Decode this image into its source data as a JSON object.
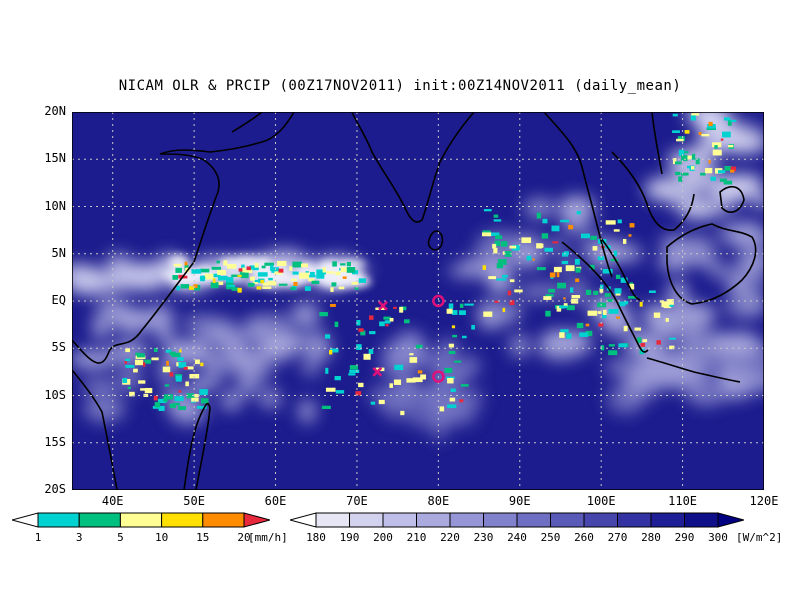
{
  "title": "NICAM OLR & PRCIP (00Z17NOV2011) init:00Z14NOV2011 (daily_mean)",
  "map": {
    "lon_range": [
      35,
      120
    ],
    "lat_range": [
      -20,
      20
    ],
    "lat_ticks": [
      {
        "value": 20,
        "label": "20N"
      },
      {
        "value": 15,
        "label": "15N"
      },
      {
        "value": 10,
        "label": "10N"
      },
      {
        "value": 5,
        "label": "5N"
      },
      {
        "value": 0,
        "label": "EQ"
      },
      {
        "value": -5,
        "label": "5S"
      },
      {
        "value": -10,
        "label": "10S"
      },
      {
        "value": -15,
        "label": "15S"
      },
      {
        "value": -20,
        "label": "20S"
      }
    ],
    "lon_ticks": [
      {
        "value": 40,
        "label": "40E"
      },
      {
        "value": 50,
        "label": "50E"
      },
      {
        "value": 60,
        "label": "60E"
      },
      {
        "value": 70,
        "label": "70E"
      },
      {
        "value": 80,
        "label": "80E"
      },
      {
        "value": 90,
        "label": "90E"
      },
      {
        "value": 100,
        "label": "100E"
      },
      {
        "value": 110,
        "label": "110E"
      },
      {
        "value": 120,
        "label": "120E"
      }
    ],
    "markers": [
      {
        "type": "circle",
        "lon": 80,
        "lat": 0
      },
      {
        "type": "circle",
        "lon": 80,
        "lat": -8
      },
      {
        "type": "cross",
        "lon": 73.2,
        "lat": -0.5
      },
      {
        "type": "cross",
        "lon": 72.5,
        "lat": -7.5
      }
    ],
    "marker_color": "#e0107a",
    "grid": true
  },
  "precip_bar": {
    "labels": [
      "1",
      "3",
      "5",
      "10",
      "15",
      "20"
    ],
    "unit": "[mm/h]",
    "colors": [
      "#ffffff",
      "#00d2d2",
      "#00c080",
      "#ffff96",
      "#ffe000",
      "#ff8c00",
      "#e8283c"
    ]
  },
  "olr_bar": {
    "labels": [
      "180",
      "190",
      "200",
      "210",
      "220",
      "230",
      "240",
      "250",
      "260",
      "270",
      "280",
      "290",
      "300"
    ],
    "unit": "[W/m^2]",
    "colors": [
      "#ffffff",
      "#e6e6f5",
      "#d2d2ef",
      "#bebee8",
      "#aaaadf",
      "#9696d6",
      "#8282cc",
      "#6e6ec2",
      "#5a5ab8",
      "#4646ad",
      "#3232a3",
      "#1e1e96",
      "#0f0f8a",
      "#000080"
    ]
  }
}
